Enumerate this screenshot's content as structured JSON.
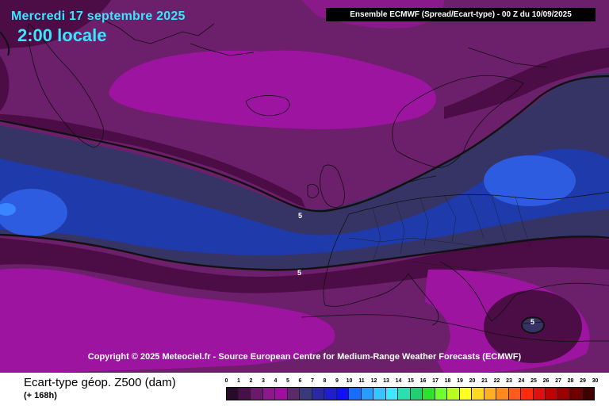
{
  "header": {
    "date": "Mercredi 17 septembre 2025",
    "time": "2:00 locale",
    "run": "Ensemble ECMWF  (Spread/Ecart-type) - 00 Z du 10/09/2025"
  },
  "copyright": "Copyright © 2025 Meteociel.fr - Source European Centre for Medium-Range Weather Forecasts (ECMWF)",
  "contour_labels": [
    "5",
    "5",
    "5"
  ],
  "footer": {
    "field": "Ecart-type géop. Z500 (dam)",
    "lead": "(+ 168h)"
  },
  "scale": {
    "values": [
      "0",
      "1",
      "2",
      "3",
      "4",
      "5",
      "6",
      "7",
      "8",
      "9",
      "10",
      "11",
      "12",
      "13",
      "14",
      "15",
      "16",
      "17",
      "18",
      "19",
      "20",
      "21",
      "22",
      "23",
      "24",
      "25",
      "26",
      "27",
      "28",
      "29",
      "30"
    ],
    "colors": [
      "#2a0a2a",
      "#4a0e4a",
      "#6b1a6b",
      "#8a1a8a",
      "#9e0fa0",
      "#5c2a6a",
      "#3a3a7a",
      "#2a2aa0",
      "#1e1ecc",
      "#1010ff",
      "#1a6cff",
      "#2a9bff",
      "#3ac4ff",
      "#40e8ff",
      "#2ae0b0",
      "#20d070",
      "#30e030",
      "#70ff30",
      "#b8ff20",
      "#ffff20",
      "#ffd820",
      "#ffb020",
      "#ff8a20",
      "#ff5a20",
      "#ff2a10",
      "#e01010",
      "#c00000",
      "#9a0000",
      "#700000",
      "#400000"
    ]
  },
  "colors": {
    "background": "#6c1f6a",
    "magenta": "#a312a5",
    "dark_band": "#4c0c46",
    "navy": "#363465",
    "blue": "#1f3aab",
    "bright_blue": "#2d5ce0",
    "contour": "#111111",
    "header_text": "#39e6ff"
  }
}
